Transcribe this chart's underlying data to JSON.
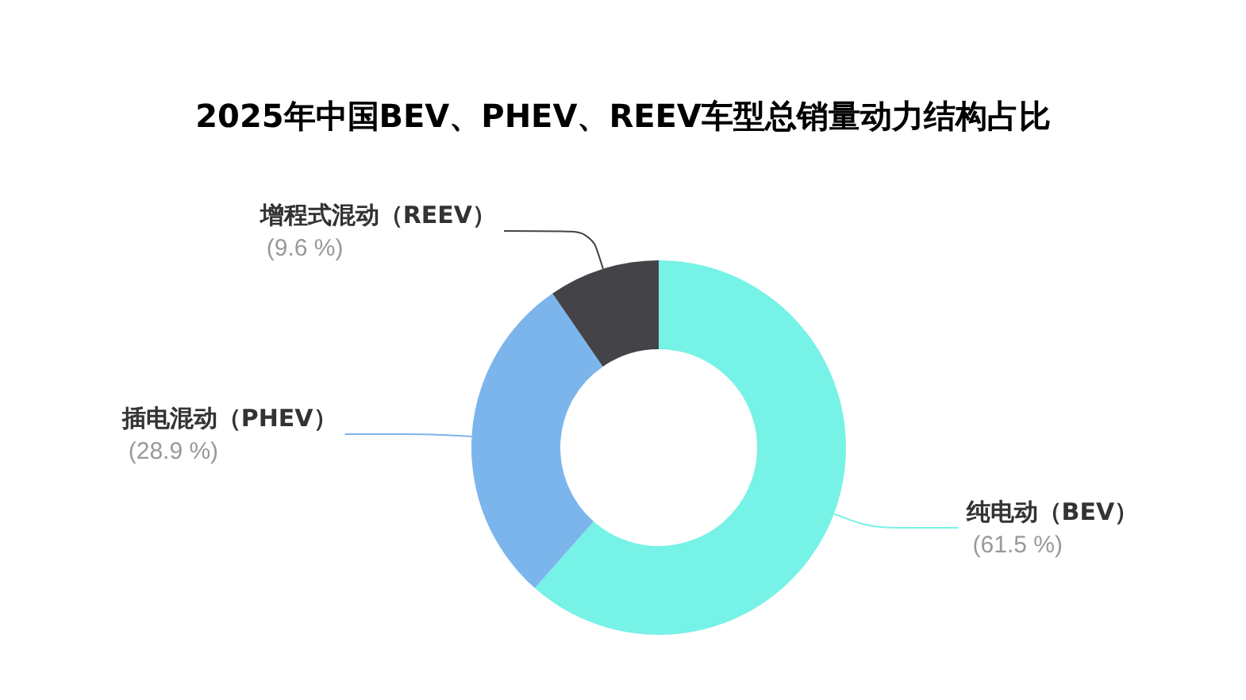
{
  "chart_data": {
    "type": "donut",
    "title": "2025年中国BEV、PHEV、REEV车型总销量动力结构占比",
    "categories": [
      "纯电动（BEV）",
      "插电混动（PHEV）",
      "增程式混动（REEV）"
    ],
    "values": [
      61.5,
      28.9,
      9.6
    ],
    "value_labels": [
      "(61.5 %)",
      "(28.9 %)",
      "(9.6 %)"
    ],
    "colors": [
      "#77f2e6",
      "#7cb5ec",
      "#434348"
    ]
  }
}
